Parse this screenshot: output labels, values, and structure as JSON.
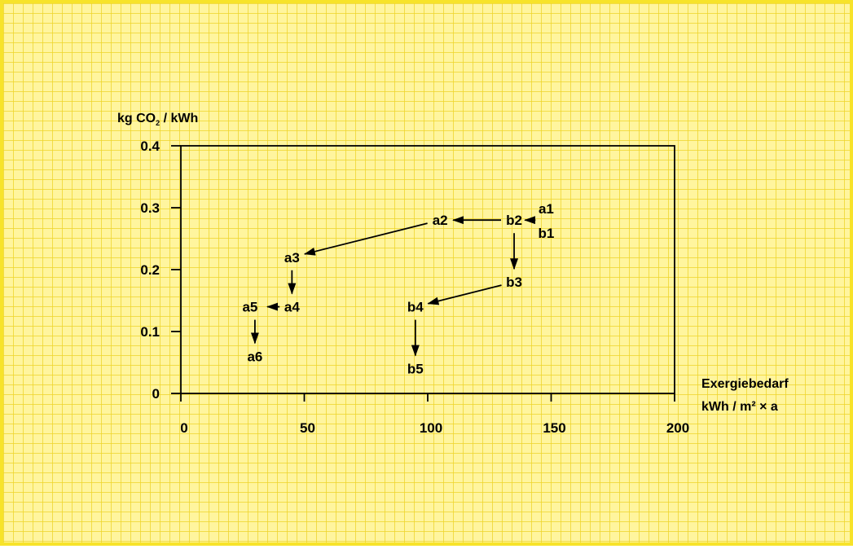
{
  "chart_data": {
    "type": "scatter",
    "ylabel": {
      "prefix": "kg CO",
      "sub": "2",
      "suffix": " / kWh"
    },
    "xlabel": {
      "line1": "Exergiebedarf",
      "line2": "kWh / m² × a"
    },
    "xlim": [
      0,
      200
    ],
    "ylim": [
      0,
      0.4
    ],
    "x_ticks": [
      0,
      50,
      100,
      150,
      200
    ],
    "x_tick_labels": [
      "0",
      "50",
      "100",
      "150",
      "200"
    ],
    "y_ticks": [
      0,
      0.1,
      0.2,
      0.3,
      0.4
    ],
    "y_tick_labels": [
      "0",
      "0.1",
      "0.2",
      "0.3",
      "0.4"
    ],
    "points": [
      {
        "label": "a1",
        "x": 148,
        "y": 0.28
      },
      {
        "label": "b1",
        "x": 148,
        "y": 0.28
      },
      {
        "label": "a2",
        "x": 105,
        "y": 0.28
      },
      {
        "label": "b2",
        "x": 135,
        "y": 0.28
      },
      {
        "label": "a3",
        "x": 45,
        "y": 0.22
      },
      {
        "label": "b3",
        "x": 135,
        "y": 0.18
      },
      {
        "label": "a4",
        "x": 45,
        "y": 0.14
      },
      {
        "label": "b4",
        "x": 95,
        "y": 0.14
      },
      {
        "label": "a5",
        "x": 30,
        "y": 0.14
      },
      {
        "label": "a6",
        "x": 30,
        "y": 0.06
      },
      {
        "label": "b5",
        "x": 95,
        "y": 0.04
      }
    ],
    "arrows": [
      {
        "from": "b1",
        "to": "b2"
      },
      {
        "from": "b2",
        "to": "a2"
      },
      {
        "from": "a2",
        "to": "a3"
      },
      {
        "from": "a3",
        "to": "a4"
      },
      {
        "from": "a4",
        "to": "a5"
      },
      {
        "from": "a5",
        "to": "a6"
      },
      {
        "from": "b2",
        "to": "b3"
      },
      {
        "from": "b3",
        "to": "b4"
      },
      {
        "from": "b4",
        "to": "b5"
      }
    ],
    "grid": false
  }
}
